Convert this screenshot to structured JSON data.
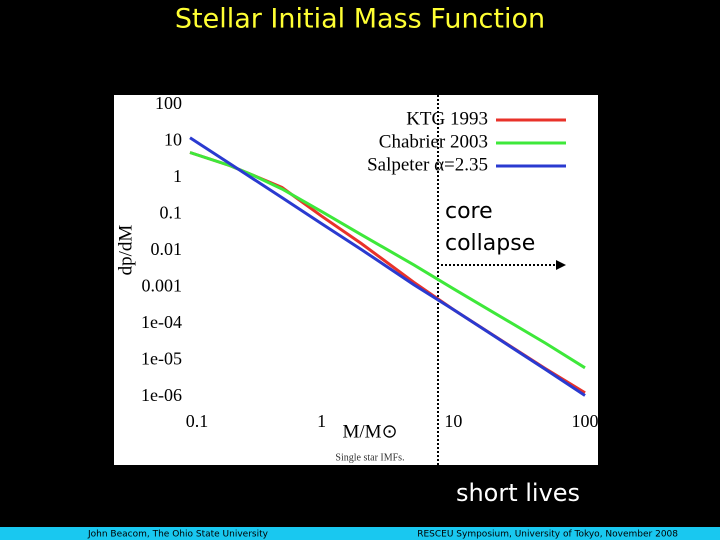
{
  "chart_data": {
    "type": "line",
    "title": "Stellar Initial Mass Function",
    "xlabel": "M/M⊙",
    "ylabel": "dp/dM",
    "caption": "Single star IMFs.",
    "annotations": [
      "core collapse",
      "short lives"
    ],
    "footer": [
      "John Beacom, The Ohio State University",
      "RESCEU Symposium, University of Tokyo, November 2008"
    ],
    "xscale": "log",
    "yscale": "log",
    "legend": "upper right",
    "x": [
      0.1,
      0.2,
      0.3,
      0.5,
      1,
      2,
      5,
      10,
      20,
      50,
      100
    ],
    "series": [
      {
        "name": "KTG 1993",
        "color": "#e8322a",
        "values": [
          5,
          2.2,
          1.2,
          0.55,
          0.09,
          0.016,
          0.0014,
          0.00025,
          5e-05,
          6e-06,
          1.3e-06
        ]
      },
      {
        "name": "Chabrier 2003",
        "color": "#3ee83a",
        "values": [
          5,
          2.2,
          1.2,
          0.5,
          0.12,
          0.028,
          0.0042,
          0.00093,
          0.00021,
          3e-05,
          6.3e-06
        ]
      },
      {
        "name": "Salpeter α=2.35",
        "color": "#2a3ad0",
        "values": [
          12.6,
          2.5,
          0.96,
          0.29,
          0.056,
          0.011,
          0.0012,
          0.00025,
          4.9e-05,
          5.7e-06,
          1.1e-06
        ]
      }
    ],
    "xlim": [
      0.1,
      100
    ],
    "xticks": [
      0.1,
      1,
      10,
      100
    ],
    "ylim": [
      1e-06,
      100
    ],
    "yticks": [
      100,
      10,
      1,
      0.1,
      0.01,
      0.001,
      {
        "value": 0.0001,
        "label": "1e-04"
      },
      {
        "value": 1e-05,
        "label": "1e-05"
      },
      {
        "value": 1e-06,
        "label": "1e-06"
      }
    ]
  }
}
